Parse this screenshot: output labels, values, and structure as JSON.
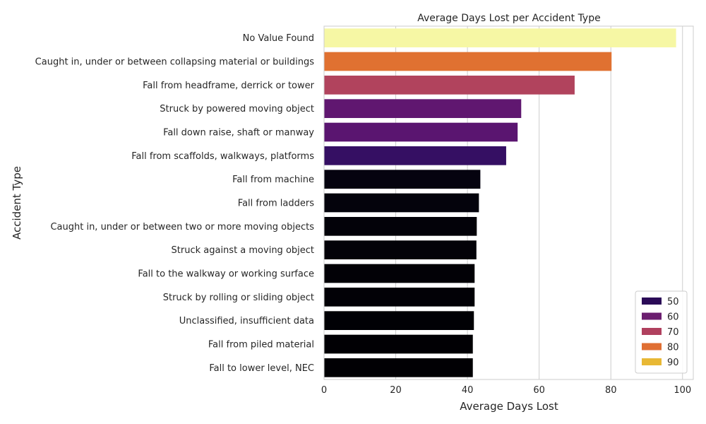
{
  "chart_data": {
    "type": "bar",
    "orientation": "horizontal",
    "title": "Average Days Lost per Accident Type",
    "xlabel": "Average Days Lost",
    "ylabel": "Accident Type",
    "xlim": [
      0,
      103
    ],
    "xticks": [
      0,
      20,
      40,
      60,
      80,
      100
    ],
    "grid": "vertical",
    "categories": [
      "No Value Found",
      "Caught in, under or between collapsing material or buildings",
      "Fall from headframe, derrick or tower",
      "Struck by powered moving object",
      "Fall down raise, shaft or manway",
      "Fall from scaffolds, walkways, platforms",
      "Fall from machine",
      "Fall from ladders",
      "Caught in, under or between two or more moving objects",
      "Struck against a moving object",
      "Fall to the walkway or working surface",
      "Struck by rolling or sliding object",
      "Unclassified, insufficient data",
      "Fall from piled material",
      "Fall to lower level, NEC"
    ],
    "values": [
      98.2,
      80.2,
      69.9,
      55.0,
      54.0,
      50.8,
      43.6,
      43.2,
      42.6,
      42.5,
      42.0,
      42.0,
      41.8,
      41.5,
      41.5
    ],
    "colors": [
      "#f6f7a4",
      "#e07131",
      "#b1435d",
      "#601770",
      "#5a1570",
      "#350f63",
      "#05030f",
      "#04030c",
      "#030209",
      "#030208",
      "#020106",
      "#020106",
      "#010105",
      "#010004",
      "#010004"
    ],
    "legend": {
      "position": "lower-right",
      "entries": [
        {
          "label": "50",
          "color": "#2b0b57"
        },
        {
          "label": "60",
          "color": "#6b1e6f"
        },
        {
          "label": "70",
          "color": "#b0405e"
        },
        {
          "label": "80",
          "color": "#e06f33"
        },
        {
          "label": "90",
          "color": "#e8b834"
        }
      ]
    }
  }
}
